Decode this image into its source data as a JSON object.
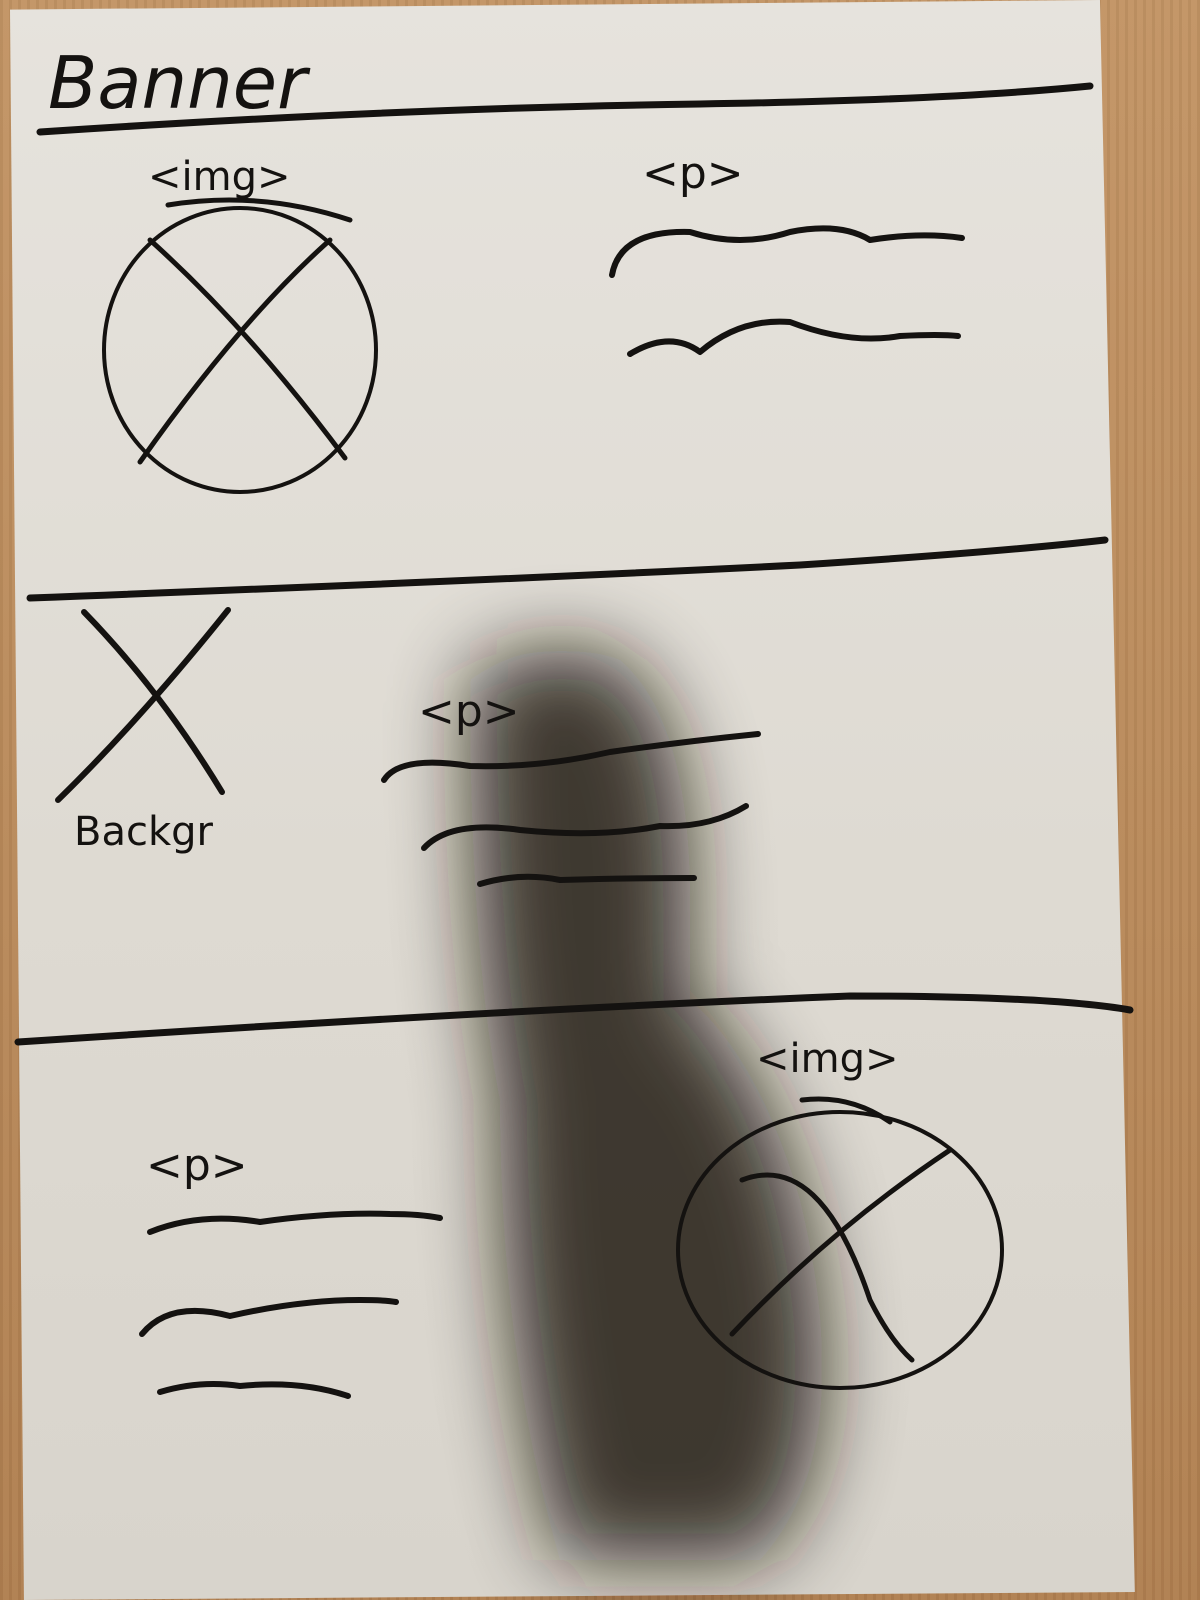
{
  "banner": {
    "label": "Banner"
  },
  "sections": [
    {
      "id": "top",
      "image_label": "<img>",
      "text_label": "<p>"
    },
    {
      "id": "middle",
      "background_label": "Backgr",
      "text_label": "<p>"
    },
    {
      "id": "bottom",
      "text_label": "<p>",
      "image_label": "<img>"
    }
  ],
  "colors": {
    "ink": "#141210",
    "paper": "#e2ded7",
    "table": "#b98a5c"
  }
}
